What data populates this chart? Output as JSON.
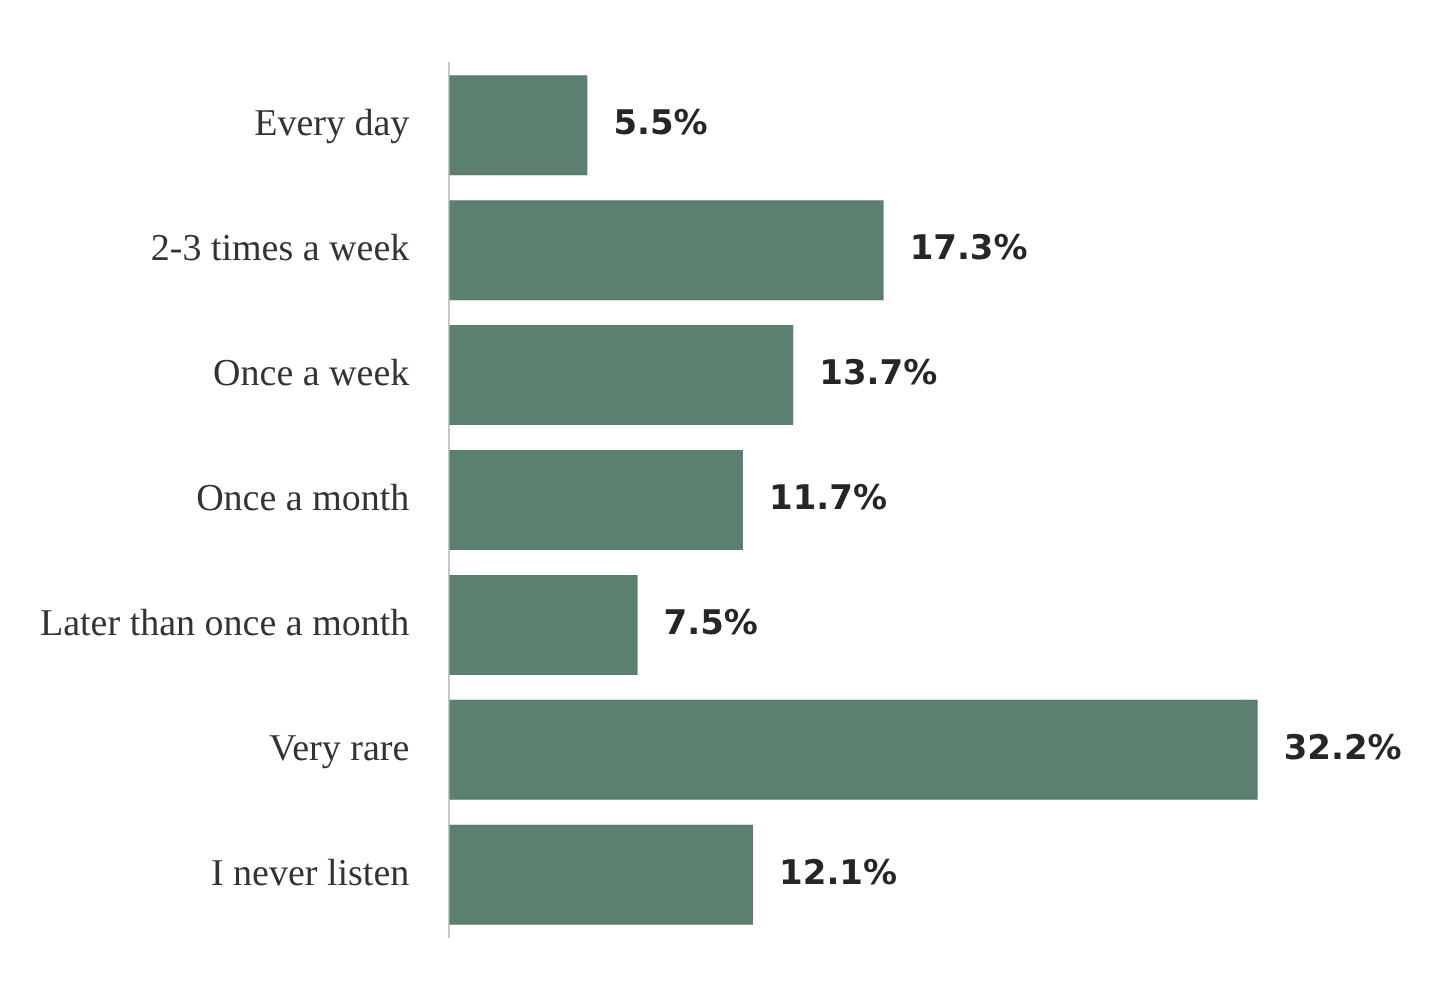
{
  "chart_data": {
    "type": "bar",
    "orientation": "horizontal",
    "categories": [
      "Every day",
      "2-3 times a week",
      "Once a week",
      "Once a month",
      "Later than once a month",
      "Very rare",
      "I never listen"
    ],
    "values": [
      5.5,
      17.3,
      13.7,
      11.7,
      7.5,
      32.2,
      12.1
    ],
    "value_labels": [
      "5.5%",
      "17.3%",
      "13.7%",
      "11.7%",
      "7.5%",
      "32.2%",
      "12.1%"
    ],
    "color": "#5b8070",
    "tick_labels": "y"
  }
}
